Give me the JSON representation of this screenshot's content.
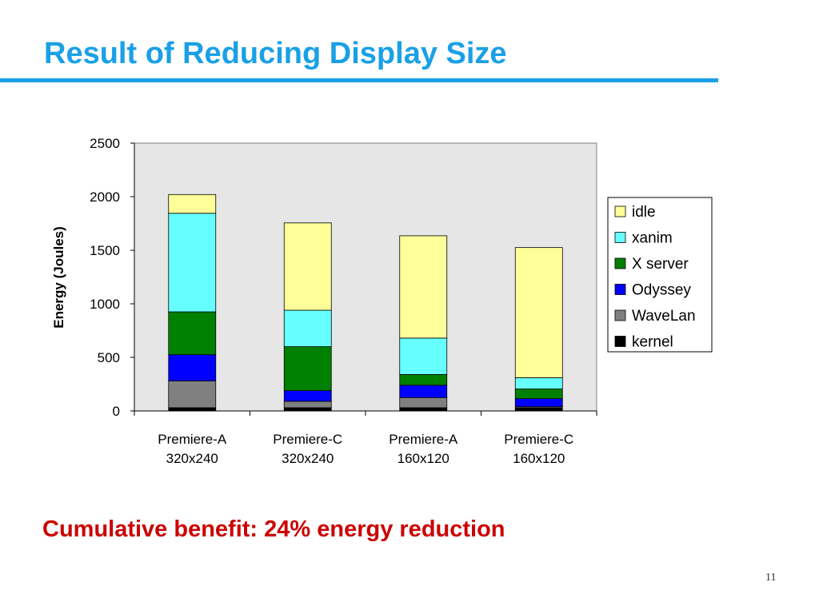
{
  "slide": {
    "title": "Result of Reducing Display Size",
    "conclusion": "Cumulative benefit: 24% energy reduction",
    "page_number": "11"
  },
  "colors": {
    "title": "#1aa0e6",
    "conclusion": "#cc0000",
    "plot_background": "#e6e6e6"
  },
  "chart_data": {
    "type": "bar",
    "stacked": true,
    "title": "",
    "xlabel": "",
    "ylabel": "Energy (Joules)",
    "ylim": [
      0,
      2500
    ],
    "yticks": [
      0,
      500,
      1000,
      1500,
      2000,
      2500
    ],
    "grid": false,
    "legend_position": "right",
    "categories": [
      [
        "Premiere-A",
        "320x240"
      ],
      [
        "Premiere-C",
        "320x240"
      ],
      [
        "Premiere-A",
        "160x120"
      ],
      [
        "Premiere-C",
        "160x120"
      ]
    ],
    "series": [
      {
        "name": "kernel",
        "color": "#000000",
        "values": [
          30,
          30,
          30,
          30
        ]
      },
      {
        "name": "WaveLan",
        "color": "#808080",
        "values": [
          250,
          60,
          95,
          10
        ]
      },
      {
        "name": "Odyssey",
        "color": "#0000ff",
        "values": [
          245,
          100,
          115,
          75
        ]
      },
      {
        "name": "X server",
        "color": "#008000",
        "values": [
          400,
          410,
          100,
          90
        ]
      },
      {
        "name": "xanim",
        "color": "#66ffff",
        "values": [
          920,
          340,
          340,
          105
        ]
      },
      {
        "name": "idle",
        "color": "#ffff99",
        "values": [
          175,
          815,
          955,
          1215
        ]
      }
    ]
  }
}
